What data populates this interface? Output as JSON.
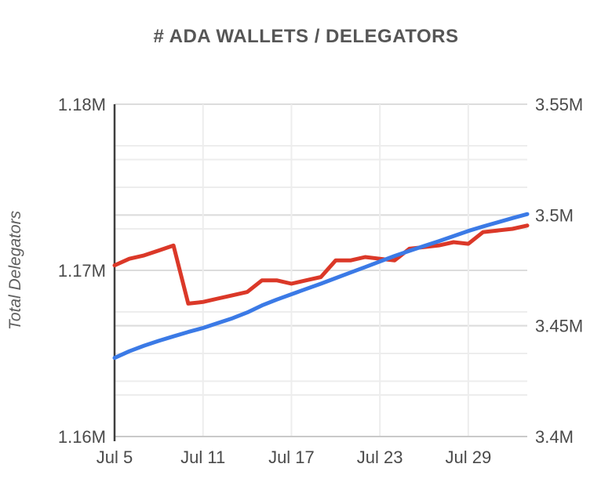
{
  "page": {
    "background": "#ffffff"
  },
  "chart_data": {
    "type": "line",
    "title": "# ADA WALLETS / DELEGATORS",
    "legend": "none",
    "grid": "on",
    "x": [
      "Jul 5",
      "Jul 6",
      "Jul 7",
      "Jul 8",
      "Jul 9",
      "Jul 10",
      "Jul 11",
      "Jul 12",
      "Jul 13",
      "Jul 14",
      "Jul 15",
      "Jul 16",
      "Jul 17",
      "Jul 18",
      "Jul 19",
      "Jul 20",
      "Jul 21",
      "Jul 22",
      "Jul 23",
      "Jul 24",
      "Jul 25",
      "Jul 26",
      "Jul 27",
      "Jul 28",
      "Jul 29",
      "Jul 30",
      "Jul 31",
      "Aug 1",
      "Aug 2"
    ],
    "x_ticks": [
      {
        "index": 0,
        "label": "Jul 5"
      },
      {
        "index": 6,
        "label": "Jul 11"
      },
      {
        "index": 12,
        "label": "Jul 17"
      },
      {
        "index": 18,
        "label": "Jul 23"
      },
      {
        "index": 24,
        "label": "Jul 29"
      }
    ],
    "left_axis": {
      "label": "Total Delegators",
      "range": [
        1.16,
        1.18
      ],
      "unit": "M",
      "minor_step": 0.0025,
      "ticks": [
        {
          "value": 1.16,
          "label": "1.16M"
        },
        {
          "value": 1.17,
          "label": "1.17M"
        },
        {
          "value": 1.18,
          "label": "1.18M"
        }
      ]
    },
    "right_axis": {
      "label": "",
      "range": [
        3.4,
        3.55
      ],
      "unit": "M",
      "minor_step": 0.025,
      "ticks": [
        {
          "value": 3.4,
          "label": "3.4M"
        },
        {
          "value": 3.45,
          "label": "3.45M"
        },
        {
          "value": 3.5,
          "label": "3.5M"
        },
        {
          "value": 3.55,
          "label": "3.55M"
        }
      ]
    },
    "series": [
      {
        "name": "delegators",
        "axis": "left",
        "color": "#db3828",
        "values": [
          1.1703,
          1.1707,
          1.1709,
          1.1712,
          1.1715,
          1.168,
          1.1681,
          1.1683,
          1.1685,
          1.1687,
          1.1694,
          1.1694,
          1.1692,
          1.1694,
          1.1696,
          1.1706,
          1.1706,
          1.1708,
          1.1707,
          1.1706,
          1.1713,
          1.1714,
          1.1715,
          1.1717,
          1.1716,
          1.1723,
          1.1724,
          1.1725,
          1.1727
        ]
      },
      {
        "name": "wallets",
        "axis": "right",
        "color": "#3b7ae6",
        "values": [
          3.4355,
          3.4385,
          3.441,
          3.4432,
          3.4452,
          3.4472,
          3.449,
          3.4512,
          3.4534,
          3.456,
          3.4592,
          3.4618,
          3.4642,
          3.4666,
          3.469,
          3.4715,
          3.474,
          3.4765,
          3.479,
          3.4815,
          3.4838,
          3.486,
          3.4882,
          3.4905,
          3.4928,
          3.4948,
          3.4967,
          3.4986,
          3.5004
        ]
      }
    ],
    "style": {
      "grid": "#ededed",
      "grid_major": "#dcdcdc",
      "axis_line": "#3f3f3f",
      "bottom_line": "#c9c9c9",
      "tick_text": "#4a4a4a",
      "title_text": "#565656",
      "axis_title_text": "#5f5f5f",
      "background": "#ffffff"
    }
  }
}
